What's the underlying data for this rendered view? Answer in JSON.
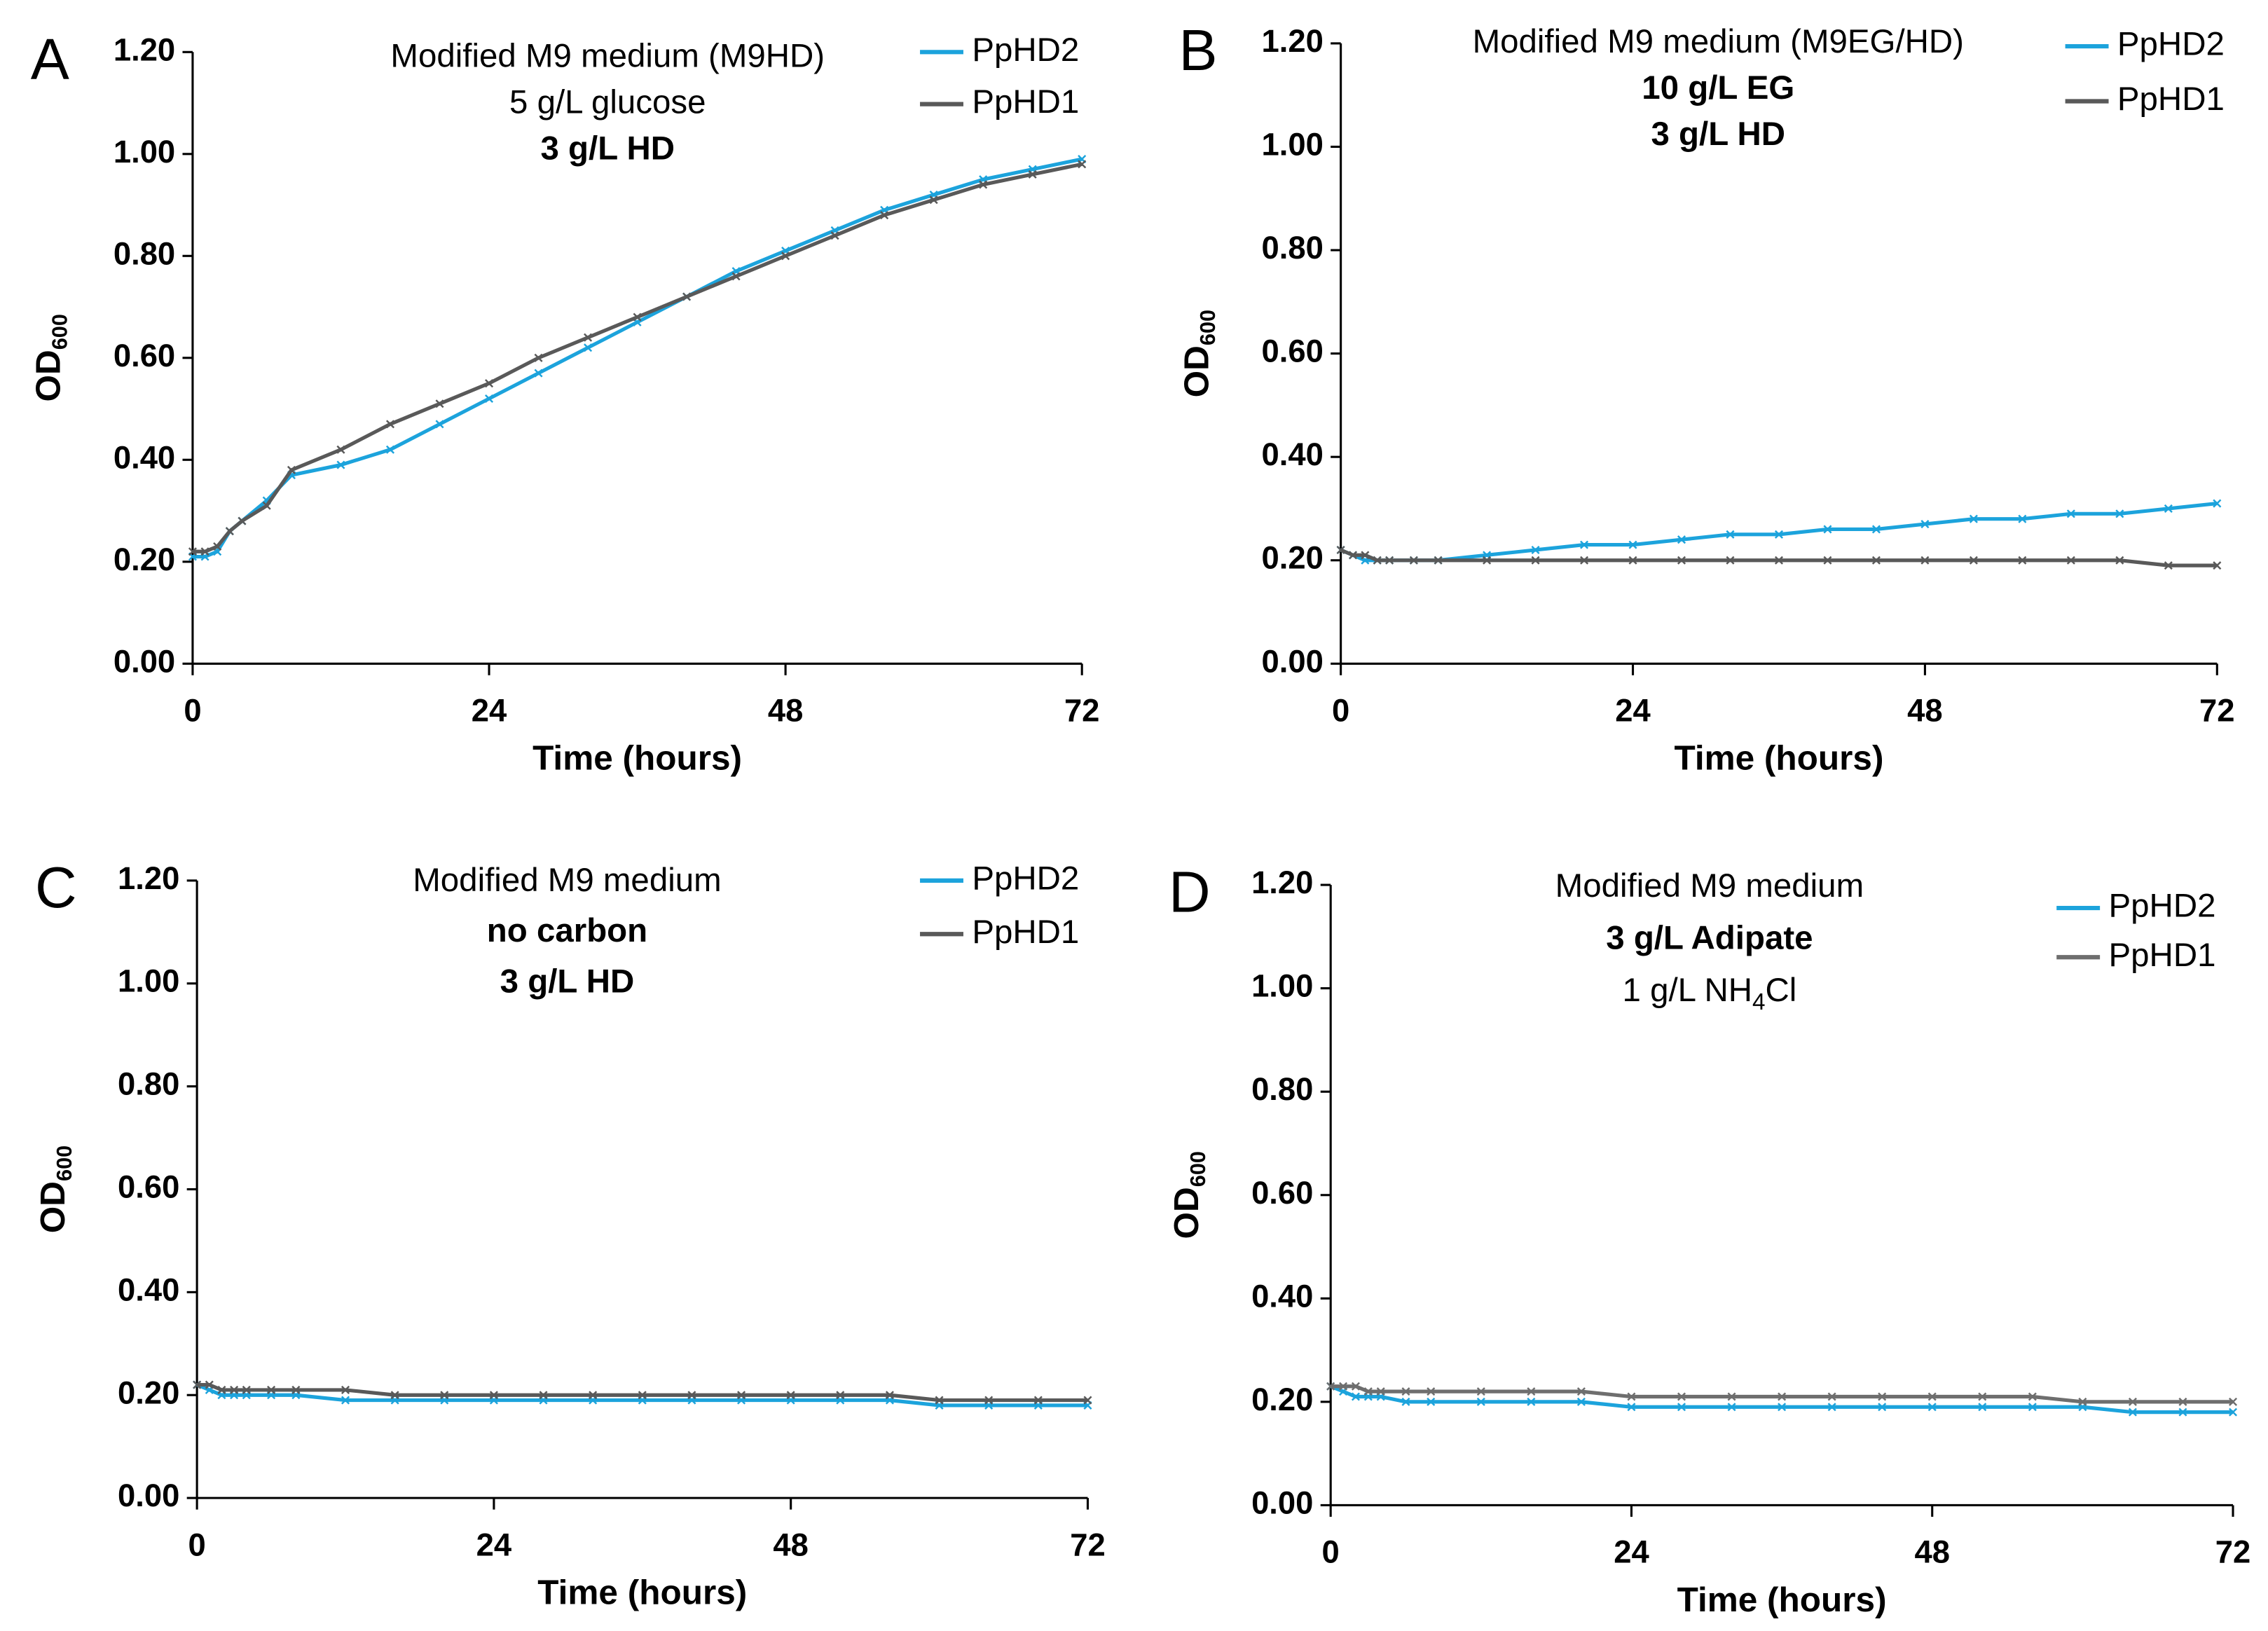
{
  "chart_data": [
    {
      "type": "line",
      "panel": "A",
      "annotation": [
        [
          {
            "text": "Modified M9 medium (M9HD)"
          }
        ],
        [
          {
            "text": "5 g/L glucose"
          }
        ],
        [
          {
            "text": "3 g/L HD",
            "bold": true
          }
        ]
      ],
      "xlabel": "Time (hours)",
      "ylabel": [
        {
          "text": "OD"
        },
        {
          "text": "600",
          "sub": true
        }
      ],
      "x": [
        0,
        1,
        2,
        3,
        4,
        6,
        8,
        12,
        16,
        20,
        24,
        28,
        32,
        36,
        40,
        44,
        48,
        52,
        56,
        60,
        64,
        68,
        72
      ],
      "series": [
        {
          "name": "PpHD2",
          "color": "#1ca3dc",
          "values": [
            0.21,
            0.21,
            0.22,
            0.26,
            0.28,
            0.32,
            0.37,
            0.39,
            0.42,
            0.47,
            0.52,
            0.57,
            0.62,
            0.67,
            0.72,
            0.77,
            0.81,
            0.85,
            0.89,
            0.92,
            0.95,
            0.97,
            0.99
          ]
        },
        {
          "name": "PpHD1",
          "color": "#595959",
          "values": [
            0.22,
            0.22,
            0.23,
            0.26,
            0.28,
            0.31,
            0.38,
            0.42,
            0.47,
            0.51,
            0.55,
            0.6,
            0.64,
            0.68,
            0.72,
            0.76,
            0.8,
            0.84,
            0.88,
            0.91,
            0.94,
            0.96,
            0.98
          ]
        }
      ],
      "xlim": [
        0,
        72
      ],
      "xticks": [
        0,
        24,
        48,
        72
      ],
      "ylim": [
        0,
        1.2
      ],
      "yticks": [
        {
          "value": 0,
          "label": "0.00"
        },
        {
          "value": 0.2,
          "label": "0.20"
        },
        {
          "value": 0.4,
          "label": "0.40"
        },
        {
          "value": 0.6,
          "label": "0.60"
        },
        {
          "value": 0.8,
          "label": "0.80"
        },
        {
          "value": 1,
          "label": "1.00"
        },
        {
          "value": 1.2,
          "label": "1.20"
        }
      ],
      "legend": "top-right"
    },
    {
      "type": "line",
      "panel": "B",
      "annotation": [
        [
          {
            "text": "Modified M9 medium (M9EG/HD)"
          }
        ],
        [
          {
            "text": "10 g/L EG",
            "bold": true
          }
        ],
        [
          {
            "text": "3 g/L HD",
            "bold": true
          }
        ]
      ],
      "xlabel": "Time (hours)",
      "ylabel": [
        {
          "text": "OD"
        },
        {
          "text": "600",
          "sub": true
        }
      ],
      "x": [
        0,
        1,
        2,
        3,
        4,
        6,
        8,
        12,
        16,
        20,
        24,
        28,
        32,
        36,
        40,
        44,
        48,
        52,
        56,
        60,
        64,
        68,
        72
      ],
      "series": [
        {
          "name": "PpHD2",
          "color": "#1ca3dc",
          "values": [
            0.22,
            0.21,
            0.2,
            0.2,
            0.2,
            0.2,
            0.2,
            0.21,
            0.22,
            0.23,
            0.23,
            0.24,
            0.25,
            0.25,
            0.26,
            0.26,
            0.27,
            0.28,
            0.28,
            0.29,
            0.29,
            0.3,
            0.31
          ]
        },
        {
          "name": "PpHD1",
          "color": "#595959",
          "values": [
            0.22,
            0.21,
            0.21,
            0.2,
            0.2,
            0.2,
            0.2,
            0.2,
            0.2,
            0.2,
            0.2,
            0.2,
            0.2,
            0.2,
            0.2,
            0.2,
            0.2,
            0.2,
            0.2,
            0.2,
            0.2,
            0.19,
            0.19
          ]
        }
      ],
      "xlim": [
        0,
        72
      ],
      "xticks": [
        0,
        24,
        48,
        72
      ],
      "ylim": [
        0,
        1.2
      ],
      "yticks": [
        {
          "value": 0,
          "label": "0.00"
        },
        {
          "value": 0.2,
          "label": "0.20"
        },
        {
          "value": 0.4,
          "label": "0.40"
        },
        {
          "value": 0.6,
          "label": "0.60"
        },
        {
          "value": 0.8,
          "label": "0.80"
        },
        {
          "value": 1,
          "label": "1.00"
        },
        {
          "value": 1.2,
          "label": "1.20"
        }
      ],
      "legend": "top-right"
    },
    {
      "type": "line",
      "panel": "C",
      "annotation": [
        [
          {
            "text": "Modified M9 medium"
          }
        ],
        [
          {
            "text": "no carbon",
            "bold": true
          }
        ],
        [
          {
            "text": "3 g/L HD",
            "bold": true
          }
        ]
      ],
      "xlabel": "Time (hours)",
      "ylabel": [
        {
          "text": "OD"
        },
        {
          "text": "600",
          "sub": true
        }
      ],
      "x": [
        0,
        1,
        2,
        3,
        4,
        6,
        8,
        12,
        16,
        20,
        24,
        28,
        32,
        36,
        40,
        44,
        48,
        52,
        56,
        60,
        64,
        68,
        72
      ],
      "series": [
        {
          "name": "PpHD2",
          "color": "#1ca3dc",
          "values": [
            0.22,
            0.21,
            0.2,
            0.2,
            0.2,
            0.2,
            0.2,
            0.19,
            0.19,
            0.19,
            0.19,
            0.19,
            0.19,
            0.19,
            0.19,
            0.19,
            0.19,
            0.19,
            0.19,
            0.18,
            0.18,
            0.18,
            0.18
          ]
        },
        {
          "name": "PpHD1",
          "color": "#595959",
          "values": [
            0.22,
            0.22,
            0.21,
            0.21,
            0.21,
            0.21,
            0.21,
            0.21,
            0.2,
            0.2,
            0.2,
            0.2,
            0.2,
            0.2,
            0.2,
            0.2,
            0.2,
            0.2,
            0.2,
            0.19,
            0.19,
            0.19,
            0.19
          ]
        }
      ],
      "xlim": [
        0,
        72
      ],
      "xticks": [
        0,
        24,
        48,
        72
      ],
      "ylim": [
        0,
        1.2
      ],
      "yticks": [
        {
          "value": 0,
          "label": "0.00"
        },
        {
          "value": 0.2,
          "label": "0.20"
        },
        {
          "value": 0.4,
          "label": "0.40"
        },
        {
          "value": 0.6,
          "label": "0.60"
        },
        {
          "value": 0.8,
          "label": "0.80"
        },
        {
          "value": 1,
          "label": "1.00"
        },
        {
          "value": 1.2,
          "label": "1.20"
        }
      ],
      "legend": "top-right"
    },
    {
      "type": "line",
      "panel": "D",
      "annotation": [
        [
          {
            "text": "Modified M9 medium"
          }
        ],
        [
          {
            "text": "3 g/L Adipate",
            "bold": true
          }
        ],
        [
          {
            "text": "1 g/L NH"
          },
          {
            "text": "4",
            "sub": true
          },
          {
            "text": "Cl"
          }
        ]
      ],
      "xlabel": "Time (hours)",
      "ylabel": [
        {
          "text": "OD"
        },
        {
          "text": "600",
          "sub": true
        }
      ],
      "x": [
        0,
        1,
        2,
        3,
        4,
        6,
        8,
        12,
        16,
        20,
        24,
        28,
        32,
        36,
        40,
        44,
        48,
        52,
        56,
        60,
        64,
        68,
        72
      ],
      "series": [
        {
          "name": "PpHD2",
          "color": "#1ca3dc",
          "values": [
            0.23,
            0.22,
            0.21,
            0.21,
            0.21,
            0.2,
            0.2,
            0.2,
            0.2,
            0.2,
            0.19,
            0.19,
            0.19,
            0.19,
            0.19,
            0.19,
            0.19,
            0.19,
            0.19,
            0.19,
            0.18,
            0.18,
            0.18
          ]
        },
        {
          "name": "PpHD1",
          "color": "#6e6e6e",
          "values": [
            0.23,
            0.23,
            0.23,
            0.22,
            0.22,
            0.22,
            0.22,
            0.22,
            0.22,
            0.22,
            0.21,
            0.21,
            0.21,
            0.21,
            0.21,
            0.21,
            0.21,
            0.21,
            0.21,
            0.2,
            0.2,
            0.2,
            0.2
          ]
        }
      ],
      "xlim": [
        0,
        72
      ],
      "xticks": [
        0,
        24,
        48,
        72
      ],
      "ylim": [
        0,
        1.2
      ],
      "yticks": [
        {
          "value": 0,
          "label": "0.00"
        },
        {
          "value": 0.2,
          "label": "0.20"
        },
        {
          "value": 0.4,
          "label": "0.40"
        },
        {
          "value": 0.6,
          "label": "0.60"
        },
        {
          "value": 0.8,
          "label": "0.80"
        },
        {
          "value": 1,
          "label": "1.00"
        },
        {
          "value": 1.2,
          "label": "1.20"
        }
      ],
      "legend": "top-right"
    }
  ]
}
